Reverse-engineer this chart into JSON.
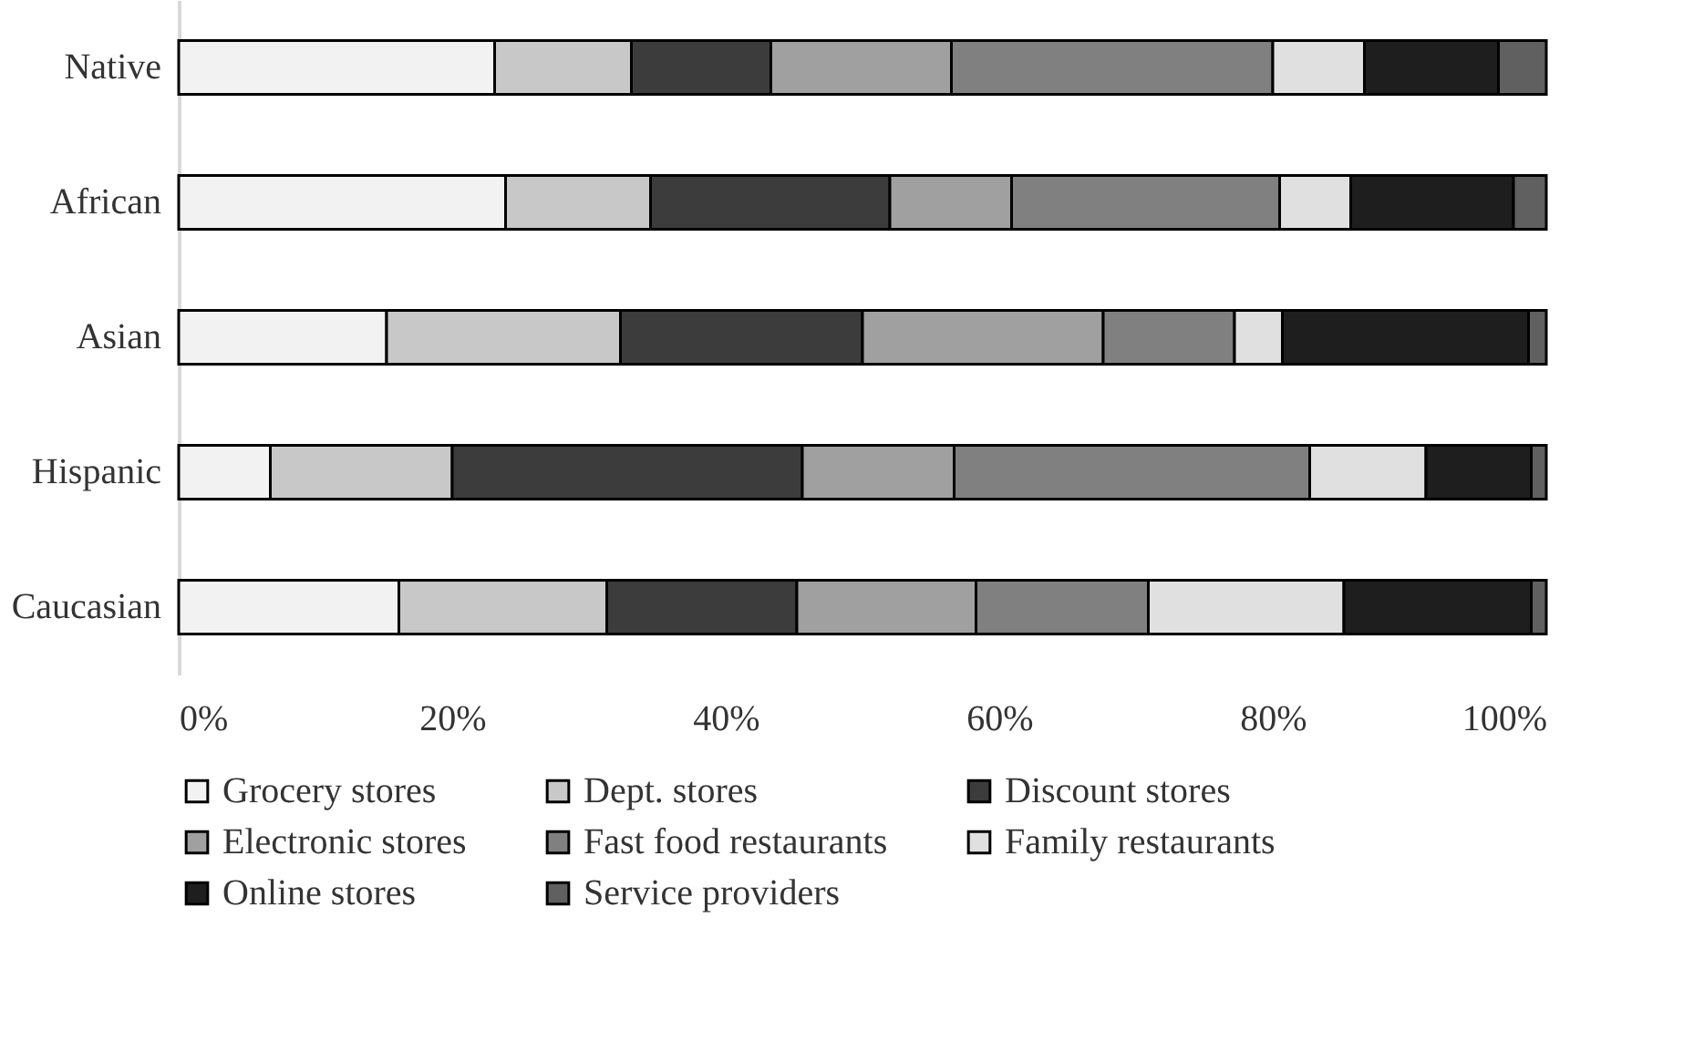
{
  "chart_data": {
    "type": "bar",
    "orientation": "horizontal",
    "stacked": true,
    "categories": [
      "Native",
      "African",
      "Asian",
      "Hispanic",
      "Caucasian"
    ],
    "series": [
      {
        "name": "Grocery stores",
        "color": "#f2f2f2",
        "values": [
          23.1,
          23.9,
          15.2,
          6.7,
          16.1
        ]
      },
      {
        "name": "Dept. stores",
        "color": "#c8c8c8",
        "values": [
          10.0,
          10.6,
          17.1,
          13.3,
          15.2
        ]
      },
      {
        "name": "Discount stores",
        "color": "#3c3c3c",
        "values": [
          10.2,
          17.5,
          17.7,
          25.6,
          13.9
        ]
      },
      {
        "name": "Electronic stores",
        "color": "#a0a0a0",
        "values": [
          13.2,
          8.9,
          17.6,
          11.1,
          13.1
        ]
      },
      {
        "name": "Fast food restaurants",
        "color": "#808080",
        "values": [
          23.5,
          19.6,
          9.6,
          26.0,
          12.6
        ]
      },
      {
        "name": "Family restaurants",
        "color": "#e0e0e0",
        "values": [
          6.7,
          5.2,
          3.5,
          8.5,
          14.3
        ]
      },
      {
        "name": "Online stores",
        "color": "#1e1e1e",
        "values": [
          9.8,
          11.9,
          18.0,
          7.7,
          13.7
        ]
      },
      {
        "name": "Service providers",
        "color": "#606060",
        "values": [
          3.5,
          2.4,
          1.3,
          1.1,
          1.1
        ]
      }
    ],
    "xlim": [
      0,
      100
    ],
    "xticks": [
      {
        "value": 0,
        "label": "0%"
      },
      {
        "value": 20,
        "label": "20%"
      },
      {
        "value": 40,
        "label": "40%"
      },
      {
        "value": 60,
        "label": "60%"
      },
      {
        "value": 80,
        "label": "80%"
      },
      {
        "value": 100,
        "label": "100%"
      }
    ],
    "grid": false,
    "legend": "bottom"
  }
}
